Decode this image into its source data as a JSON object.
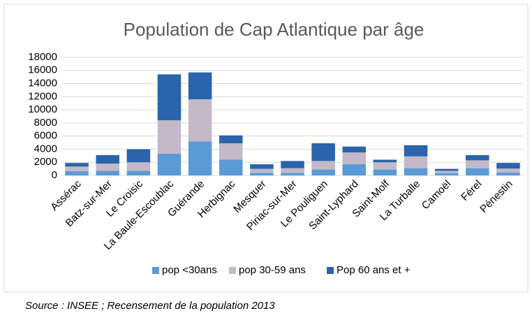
{
  "chart_data": {
    "type": "bar",
    "stacked": true,
    "title": "Population de Cap Atlantique par âge",
    "categories": [
      "Assérac",
      "Batz-sur-Mer",
      "Le Croisic",
      "La Baule-Escoublac",
      "Guérande",
      "Herbignac",
      "Mesquer",
      "Piriac-sur-Mer",
      "Le Pouliguen",
      "Saint-Lyphard",
      "Saint-Molf",
      "La Turballe",
      "Camoël",
      "Férel",
      "Pénestin"
    ],
    "series": [
      {
        "name": "pop <30ans",
        "color": "#5b9bd5",
        "values": [
          650,
          700,
          700,
          3300,
          5200,
          2400,
          400,
          400,
          900,
          1700,
          900,
          1100,
          350,
          1100,
          450
        ]
      },
      {
        "name": "pop 30-59 ans",
        "color": "#c3b9c8",
        "values": [
          700,
          1100,
          1300,
          5100,
          6400,
          2500,
          600,
          700,
          1300,
          1800,
          1100,
          1800,
          350,
          1200,
          600
        ]
      },
      {
        "name": "Pop 60 ans et +",
        "color": "#2a64ab",
        "values": [
          550,
          1300,
          2000,
          7000,
          4100,
          1200,
          700,
          1100,
          2700,
          900,
          400,
          1700,
          300,
          800,
          850
        ]
      }
    ],
    "ylim": [
      0,
      18000
    ],
    "yticks": [
      0,
      2000,
      4000,
      6000,
      8000,
      10000,
      12000,
      14000,
      16000,
      18000
    ],
    "grid": true,
    "legend": "bottom",
    "source": "Source :  INSEE ; Recensement de la population 2013"
  }
}
